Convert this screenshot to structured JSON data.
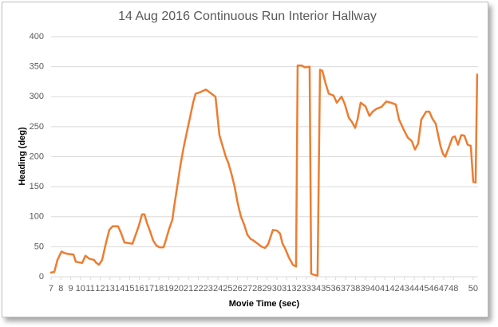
{
  "chart_data": {
    "type": "line",
    "title": "14 Aug 2016 Continuous Run Interior Hallway",
    "x_label": "Movie Time (sec)",
    "y_label": "Heading (deg)",
    "color": "#ed7d31",
    "grid": true,
    "x": [
      7.0,
      7.33,
      7.65,
      8.06,
      8.3,
      8.71,
      9.28,
      9.52,
      10.17,
      10.5,
      10.9,
      11.39,
      11.55,
      11.88,
      12.2,
      12.53,
      12.93,
      13.26,
      13.83,
      14.15,
      14.48,
      14.97,
      15.29,
      15.62,
      15.94,
      16.27,
      16.51,
      16.76,
      17.08,
      17.41,
      17.73,
      18.06,
      18.46,
      18.71,
      19.03,
      19.36,
      19.52,
      19.85,
      20.17,
      20.5,
      20.82,
      21.15,
      21.47,
      21.72,
      22.12,
      22.77,
      23.26,
      23.75,
      24.15,
      24.4,
      24.8,
      25.05,
      25.37,
      25.7,
      26.02,
      26.35,
      26.67,
      27.0,
      27.33,
      27.65,
      27.98,
      28.46,
      28.79,
      29.11,
      29.6,
      30.01,
      30.33,
      30.58,
      30.82,
      31.23,
      31.63,
      31.96,
      32.12,
      32.53,
      32.85,
      33.34,
      33.5,
      33.83,
      34.15,
      34.4,
      34.64,
      34.97,
      35.29,
      35.78,
      36.11,
      36.59,
      36.92,
      37.33,
      37.65,
      37.98,
      38.22,
      38.54,
      39.03,
      39.44,
      39.76,
      40.17,
      40.66,
      41.15,
      41.63,
      42.12,
      42.45,
      42.93,
      43.34,
      43.75,
      44.07,
      44.4,
      44.72,
      45.21,
      45.54,
      45.86,
      46.19,
      46.67,
      46.92,
      47.16,
      47.49,
      47.89,
      48.14,
      48.46,
      48.79,
      49.11,
      49.44,
      49.76,
      50.01,
      50.25,
      50.41
    ],
    "values": [
      7,
      8,
      28,
      42,
      40,
      38,
      37,
      25,
      23,
      35,
      30,
      28,
      24,
      20,
      28,
      52,
      78,
      84,
      84,
      72,
      57,
      56,
      55,
      70,
      85,
      104,
      104,
      90,
      76,
      60,
      52,
      49,
      49,
      62,
      80,
      95,
      115,
      150,
      185,
      215,
      240,
      265,
      290,
      305,
      307,
      312,
      306,
      300,
      236,
      222,
      200,
      190,
      172,
      150,
      122,
      100,
      87,
      70,
      63,
      60,
      56,
      50,
      48,
      54,
      78,
      77,
      72,
      55,
      48,
      32,
      20,
      17,
      352,
      352,
      349,
      350,
      5,
      3,
      2,
      345,
      343,
      322,
      305,
      302,
      290,
      300,
      288,
      265,
      258,
      248,
      262,
      290,
      284,
      268,
      275,
      280,
      283,
      292,
      290,
      287,
      262,
      245,
      232,
      226,
      212,
      222,
      262,
      275,
      275,
      263,
      255,
      218,
      205,
      200,
      214,
      232,
      234,
      220,
      236,
      235,
      220,
      218,
      158,
      157,
      337
    ],
    "xlim": [
      7,
      50.5
    ],
    "xticks": [
      7,
      8,
      9,
      10,
      11,
      12,
      13,
      14,
      15,
      16,
      17,
      18,
      19,
      20,
      21,
      22,
      23,
      24,
      25,
      26,
      27,
      28,
      29,
      30,
      31,
      32,
      33,
      34,
      35,
      36,
      37,
      38,
      39,
      40,
      41,
      42,
      43,
      44,
      45,
      46,
      47,
      48,
      50
    ],
    "ylim": [
      0,
      400
    ],
    "yticks": [
      0,
      50,
      100,
      150,
      200,
      250,
      300,
      350,
      400
    ]
  }
}
